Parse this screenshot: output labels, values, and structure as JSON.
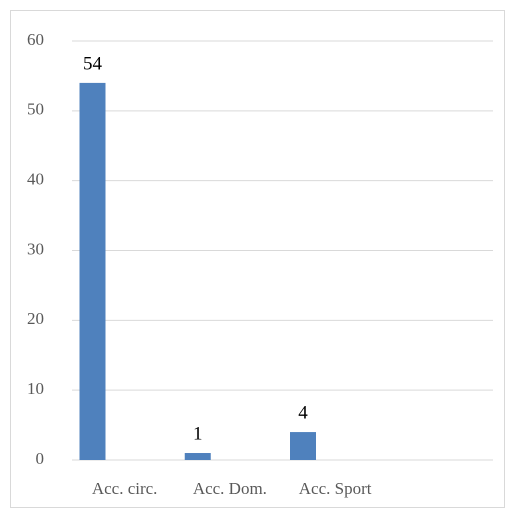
{
  "chart_data": {
    "type": "bar",
    "categories": [
      "Acc. circ.",
      "Acc. Dom.",
      "Acc. Sport",
      null
    ],
    "values": [
      54,
      1,
      4,
      null
    ],
    "color": "#4f81bd",
    "ylim": [
      0,
      60
    ],
    "yticks": [
      0,
      10,
      20,
      30,
      40,
      50,
      60
    ],
    "grid": true
  }
}
